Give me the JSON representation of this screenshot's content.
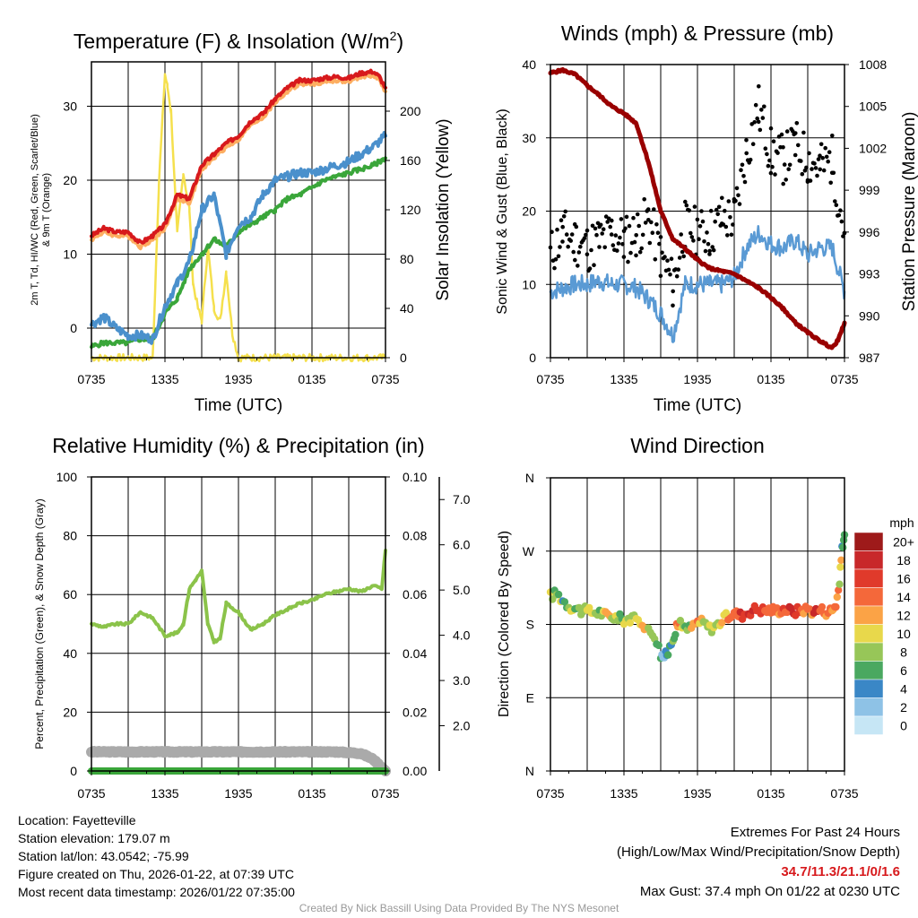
{
  "colors": {
    "temp_red": "#d7191c",
    "temp_orange": "#fdae61",
    "dewpoint_green": "#3aa63a",
    "windchill_blue": "#4a90cc",
    "insolation_yellow": "#f5e04d",
    "pressure_maroon": "#990000",
    "gust_black": "#000000",
    "wind_blue": "#5a9ad4",
    "rh_green": "#8bc34a",
    "precip_green": "#3aa63a",
    "snow_gray": "#aaaaaa",
    "extremes_red": "#d7191c",
    "credit_gray": "#999999"
  },
  "chart_data": [
    {
      "id": "temperature",
      "type": "line",
      "title": "Temperature (F) & Insolation (W/m²)",
      "title_main": "Temperature (F) & Insolation (W/m",
      "title_sup": "2",
      "title_end": ")",
      "xlabel": "Time (UTC)",
      "ylabel_left_line1": "2m T, Td, HI/WC (Red, Green, Scarlet/Blue)",
      "ylabel_left_line2": "& 9m T (Orange)",
      "ylabel_right": "Solar Insolation (Yellow)",
      "x_tick_labels": [
        "0735",
        "1335",
        "1935",
        "0135",
        "0735"
      ],
      "xlim": [
        0,
        24
      ],
      "ylim_left": [
        -4,
        36
      ],
      "ylim_right": [
        0,
        240
      ],
      "y_ticks_left": [
        0,
        10,
        20,
        30
      ],
      "y_ticks_right": [
        0,
        40,
        80,
        120,
        160,
        200
      ],
      "series": [
        {
          "name": "2m Temperature",
          "color": "#d7191c",
          "axis": "left",
          "x": [
            0,
            1,
            2,
            3,
            4,
            5,
            6,
            7,
            8,
            9,
            10,
            11,
            12,
            13,
            14,
            15,
            16,
            17,
            18,
            19,
            20,
            21,
            22,
            23,
            23.5,
            24
          ],
          "values": [
            12.5,
            13.5,
            13,
            13,
            11.5,
            12.5,
            14,
            18,
            17.5,
            22,
            23.5,
            25,
            26,
            28,
            29,
            31,
            32.5,
            33.5,
            33.5,
            33.8,
            34,
            33.8,
            34.5,
            34.7,
            34,
            32.5
          ]
        },
        {
          "name": "9m Temperature",
          "color": "#fdae61",
          "axis": "left",
          "x": [
            0,
            1,
            2,
            3,
            4,
            5,
            6,
            7,
            8,
            9,
            10,
            11,
            12,
            13,
            14,
            15,
            16,
            17,
            18,
            19,
            20,
            21,
            22,
            23,
            23.5,
            24
          ],
          "values": [
            12,
            13,
            12.5,
            12.5,
            11,
            12,
            13.5,
            17.5,
            17,
            21.5,
            23,
            24.5,
            25.5,
            27.5,
            28.5,
            30.5,
            32,
            33,
            33,
            33.3,
            33.5,
            33.3,
            34,
            34.2,
            33.5,
            32
          ]
        },
        {
          "name": "Dewpoint",
          "color": "#3aa63a",
          "axis": "left",
          "x": [
            0,
            1,
            2,
            3,
            4,
            5,
            6,
            7,
            8,
            9,
            10,
            11,
            12,
            13,
            14,
            15,
            16,
            17,
            18,
            19,
            20,
            21,
            22,
            23,
            24
          ],
          "values": [
            -2.5,
            -2,
            -2,
            -2,
            -1.5,
            -1.5,
            2,
            4,
            8,
            10,
            12,
            11,
            13,
            14,
            15,
            16,
            17.5,
            18,
            19,
            20,
            20.5,
            21,
            21.5,
            22,
            23
          ]
        },
        {
          "name": "Wind Chill",
          "color": "#4a90cc",
          "axis": "left",
          "x": [
            0,
            1,
            2,
            3,
            4,
            5,
            6,
            7,
            8,
            9,
            10,
            11,
            12,
            13,
            14,
            15,
            16,
            17,
            18,
            19,
            20,
            21,
            22,
            23,
            24
          ],
          "values": [
            0.5,
            1.5,
            0,
            -1,
            -1,
            -1.5,
            3,
            6,
            9,
            16,
            18,
            10,
            14,
            15,
            18,
            20,
            20.5,
            21,
            21,
            21.5,
            22,
            22.5,
            23.5,
            24.5,
            26
          ]
        },
        {
          "name": "Solar Insolation",
          "color": "#f5e04d",
          "axis": "right",
          "x": [
            0,
            4,
            5,
            5.5,
            6,
            6.2,
            6.5,
            7,
            7.5,
            8,
            8.3,
            8.7,
            9,
            9.5,
            10,
            10.5,
            11,
            11.5,
            12,
            13,
            24
          ],
          "values": [
            0,
            0,
            0,
            140,
            230,
            220,
            200,
            100,
            150,
            120,
            60,
            40,
            30,
            90,
            40,
            30,
            70,
            20,
            0,
            0,
            0
          ]
        }
      ]
    },
    {
      "id": "winds",
      "type": "line",
      "title": "Winds (mph) & Pressure (mb)",
      "xlabel": "Time (UTC)",
      "ylabel_left": "Sonic Wind & Gust (Blue, Black)",
      "ylabel_right": "Station Pressure (Maroon)",
      "x_tick_labels": [
        "0735",
        "1335",
        "1935",
        "0135",
        "0735"
      ],
      "xlim": [
        0,
        24
      ],
      "ylim_left": [
        0,
        40
      ],
      "ylim_right": [
        987,
        1008
      ],
      "y_ticks_left": [
        0,
        10,
        20,
        30,
        40
      ],
      "y_ticks_right": [
        987,
        990,
        993,
        996,
        999,
        1002,
        1005,
        1008
      ],
      "series": [
        {
          "name": "Sonic Wind",
          "color": "#5a9ad4",
          "axis": "left",
          "x": [
            0,
            1,
            2,
            3,
            4,
            5,
            6,
            7,
            8,
            9,
            10,
            11,
            12,
            13,
            14,
            15,
            16,
            17,
            18,
            19,
            20,
            21,
            22,
            23,
            24
          ],
          "values": [
            9,
            9.5,
            10,
            10,
            10.5,
            10,
            10,
            9.5,
            8,
            6,
            3,
            10,
            10,
            10,
            10,
            11,
            15,
            17,
            15.5,
            15,
            16,
            14,
            15,
            15,
            9
          ]
        },
        {
          "name": "Wind Gust",
          "color": "#000000",
          "axis": "left",
          "style": "dots",
          "x": [
            0,
            1,
            2,
            3,
            4,
            5,
            6,
            7,
            8,
            9,
            10,
            11,
            12,
            13,
            14,
            15,
            16,
            17,
            18,
            19,
            20,
            21,
            22,
            23,
            24
          ],
          "values": [
            14,
            17,
            16,
            15,
            16,
            17,
            16,
            17,
            19,
            14,
            10,
            18,
            17,
            17,
            19,
            19,
            28,
            34,
            28,
            27,
            29,
            27,
            26,
            27,
            17
          ]
        },
        {
          "name": "Station Pressure",
          "color": "#990000",
          "axis": "right",
          "x": [
            0,
            1,
            2,
            3,
            4,
            5,
            6,
            7,
            8,
            9,
            10,
            11,
            12,
            13,
            14,
            15,
            16,
            17,
            18,
            19,
            20,
            21,
            22,
            23,
            23.5,
            24
          ],
          "values": [
            1007.4,
            1007.6,
            1007.3,
            1006.5,
            1005.8,
            1005,
            1004.5,
            1003.8,
            1001,
            997.5,
            995.5,
            994.8,
            994,
            993.4,
            993.2,
            993,
            992.5,
            992,
            991.3,
            990.5,
            989.5,
            988.8,
            988.2,
            987.7,
            988.3,
            989.5
          ]
        }
      ]
    },
    {
      "id": "humidity",
      "type": "line",
      "title": "Relative Humidity (%) & Precipitation (in)",
      "ylabel_left": "Percent, Precipitation (Green), & Snow Depth (Gray)",
      "x_tick_labels": [
        "0735",
        "1335",
        "1935",
        "0135",
        "0735"
      ],
      "xlim": [
        0,
        24
      ],
      "ylim_left": [
        0,
        100
      ],
      "ylim_precip": [
        0,
        0.1
      ],
      "ylim_snow": [
        1.0,
        7.5
      ],
      "y_ticks_left": [
        0,
        20,
        40,
        60,
        80,
        100
      ],
      "y_ticks_precip": [
        "0.00",
        "0.02",
        "0.04",
        "0.06",
        "0.08",
        "0.10"
      ],
      "y_ticks_snow": [
        "2.0",
        "3.0",
        "4.0",
        "5.0",
        "6.0",
        "7.0"
      ],
      "series": [
        {
          "name": "Relative Humidity",
          "color": "#8bc34a",
          "axis": "left",
          "x": [
            0,
            1,
            2,
            3,
            4,
            5,
            6,
            7,
            7.5,
            8,
            8.5,
            9,
            9.5,
            10,
            10.5,
            11,
            12,
            13,
            14,
            15,
            16,
            17,
            18,
            19,
            20,
            21,
            22,
            23,
            23.7,
            24
          ],
          "values": [
            50,
            49,
            50,
            50,
            54,
            52,
            46,
            47,
            50,
            62,
            65,
            68,
            50,
            44,
            45,
            57,
            54,
            48,
            50,
            53,
            55,
            57,
            58,
            60,
            61,
            62,
            61,
            63,
            62,
            75
          ]
        },
        {
          "name": "Precipitation",
          "color": "#3aa63a",
          "axis": "precip",
          "x": [
            0,
            24
          ],
          "values": [
            0,
            0
          ]
        },
        {
          "name": "Snow Depth",
          "color": "#aaaaaa",
          "axis": "left",
          "x": [
            0,
            20,
            22,
            23,
            24
          ],
          "values": [
            6.5,
            6.5,
            6,
            4,
            0
          ]
        }
      ]
    },
    {
      "id": "wind_direction",
      "type": "scatter",
      "title": "Wind Direction",
      "ylabel": "Direction (Colored By Speed)",
      "x_tick_labels": [
        "0735",
        "1335",
        "1935",
        "0135",
        "0735"
      ],
      "xlim": [
        0,
        24
      ],
      "ylim": [
        0,
        360
      ],
      "y_tick_labels": [
        "N",
        "E",
        "S",
        "W",
        "N"
      ],
      "y_ticks": [
        0,
        90,
        180,
        270,
        360
      ],
      "legend": {
        "unit": "mph",
        "labels": [
          "20+",
          "18",
          "16",
          "14",
          "12",
          "10",
          "8",
          "6",
          "4",
          "2",
          "0"
        ],
        "colors": [
          "#9e1a1a",
          "#c8282a",
          "#e03a2b",
          "#f4683a",
          "#fba346",
          "#e8d84b",
          "#97c658",
          "#4aa860",
          "#3a87c6",
          "#8ec2e6",
          "#c6e6f5"
        ]
      },
      "x": [
        0,
        0.5,
        1,
        1.5,
        2,
        2.5,
        3,
        3.5,
        4,
        4.5,
        5,
        5.5,
        6,
        6.5,
        7,
        7.5,
        8,
        8.5,
        9,
        9.3,
        9.6,
        10,
        10.3,
        10.6,
        11,
        11.5,
        12,
        12.5,
        13,
        13.5,
        14,
        14.5,
        15,
        15.5,
        16,
        16.5,
        17,
        17.5,
        18,
        18.5,
        19,
        19.5,
        20,
        20.5,
        21,
        21.5,
        22,
        22.5,
        23,
        23.3,
        23.6,
        23.8,
        24
      ],
      "values": [
        215,
        218,
        210,
        203,
        200,
        197,
        196,
        195,
        195,
        191,
        190,
        188,
        186,
        187,
        185,
        183,
        172,
        168,
        143,
        140,
        145,
        165,
        175,
        185,
        173,
        176,
        183,
        182,
        175,
        178,
        185,
        190,
        194,
        191,
        194,
        198,
        199,
        197,
        198,
        197,
        199,
        197,
        196,
        198,
        199,
        196,
        198,
        196,
        197,
        205,
        230,
        275,
        290
      ],
      "speeds": [
        9,
        9,
        7,
        9,
        8,
        10,
        11,
        10,
        9,
        12,
        10,
        8,
        9,
        11,
        10,
        12,
        10,
        9,
        5,
        4,
        6,
        8,
        14,
        9,
        7,
        12,
        13,
        9,
        10,
        11,
        12,
        14,
        16,
        18,
        17,
        18,
        16,
        16,
        14,
        15,
        16,
        18,
        17,
        14,
        15,
        18,
        16,
        14,
        15,
        15,
        11,
        7,
        6
      ]
    }
  ],
  "info": {
    "location": "Location: Fayetteville",
    "elevation": "Station elevation: 179.07 m",
    "latlon": "Station lat/lon: 43.0542; -75.99",
    "created": "Figure created on Thu, 2026-01-22, at 07:39 UTC",
    "recent": "Most recent data timestamp: 2026/01/22 07:35:00"
  },
  "extremes": {
    "title": "Extremes For Past 24 Hours",
    "subtitle": "(High/Low/Max Wind/Precipitation/Snow Depth)",
    "values": "34.7/11.3/21.1/0/1.6",
    "max_gust": "Max Gust: 37.4 mph On 01/22 at 0230 UTC"
  },
  "credit": "Created By Nick Bassill Using Data Provided By The NYS Mesonet"
}
